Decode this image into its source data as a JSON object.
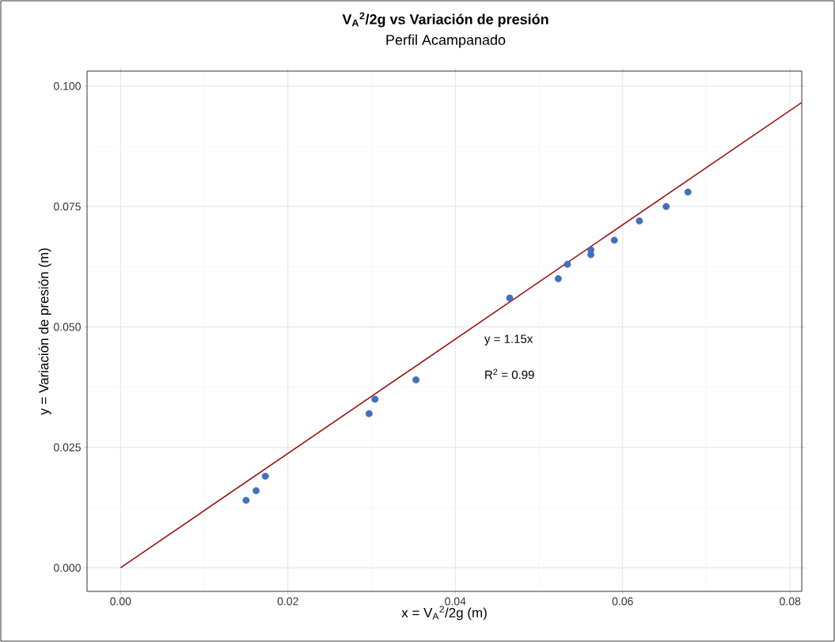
{
  "chart_data": {
    "type": "scatter",
    "title": "V$_{A}$$^{2}$/2g vs Variación de presión",
    "subtitle": "Perfil Acampanado",
    "xlabel": "x = V$_{A}$$^{2}$/2g (m)",
    "ylabel": "y = Variación de presión (m)",
    "xlim": [
      -0.004,
      0.0814
    ],
    "ylim": [
      -0.0049,
      0.1031
    ],
    "xticks": [
      {
        "value": 0,
        "label": "0.00"
      },
      0.02,
      0.04,
      0.06,
      0.08
    ],
    "yticks": [
      {
        "value": 0,
        "label": "0.000"
      },
      0.025,
      {
        "value": 0.05,
        "label": "0.050"
      },
      0.075,
      {
        "value": 0.1,
        "label": "0.100"
      }
    ],
    "grid": true,
    "series": [
      {
        "marker": "circle",
        "color": "#4170c0",
        "x": [
          0.015,
          0.0162,
          0.0173,
          0.0297,
          0.0304,
          0.0353,
          0.0465,
          0.0523,
          0.0534,
          0.0562,
          0.0562,
          0.059,
          0.062,
          0.0652,
          0.0678
        ],
        "values": [
          0.014,
          0.016,
          0.019,
          0.032,
          0.035,
          0.039,
          0.056,
          0.06,
          0.063,
          0.065,
          0.066,
          0.068,
          0.072,
          0.075,
          0.078
        ]
      },
      {
        "type": "line",
        "color": "#9b1010",
        "x": [
          0,
          0.0814
        ],
        "values": [
          0,
          0.0966
        ]
      }
    ],
    "annotations": [
      "y = 1.15x",
      "R$^{2}$ = 0.99"
    ]
  }
}
